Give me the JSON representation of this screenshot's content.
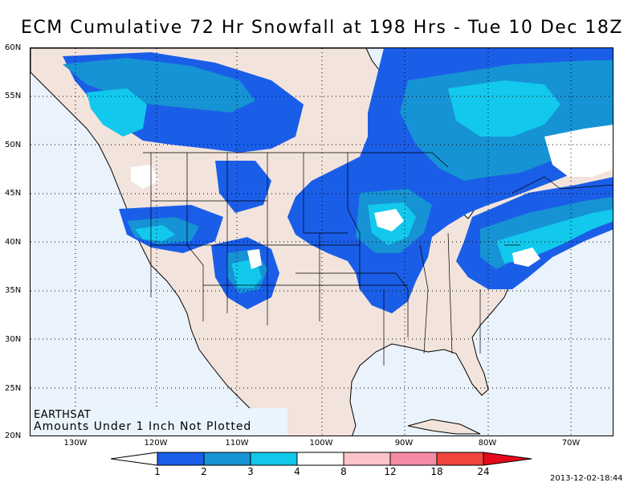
{
  "title": "ECM Cumulative 72 Hr Snowfall at 198 Hrs - Tue 10 Dec 18Z",
  "source_label": "EARTHSAT",
  "note": "Amounts Under 1 Inch Not Plotted",
  "timestamp": "2013-12-02-18:44",
  "lat_labels": [
    "60N",
    "55N",
    "50N",
    "45N",
    "40N",
    "35N",
    "30N",
    "25N",
    "20N"
  ],
  "lon_labels": [
    "130W",
    "120W",
    "110W",
    "100W",
    "90W",
    "80W",
    "70W"
  ],
  "legend": {
    "units_levels": [
      "1",
      "2",
      "3",
      "4",
      "8",
      "12",
      "18",
      "24"
    ],
    "colors": [
      "#ffffff",
      "#1a5ee8",
      "#1693d4",
      "#12c8ec",
      "#ffffff",
      "#fbc4c9",
      "#f58aa4",
      "#f0443c",
      "#e6091c"
    ]
  },
  "colors": {
    "land": "#f2e4dc",
    "water": "#eaf2fb",
    "snow_1_2": "#1a5ee8",
    "snow_2_3": "#1693d4",
    "snow_3_4": "#12c8ec",
    "snow_4_8": "#ffffff"
  }
}
